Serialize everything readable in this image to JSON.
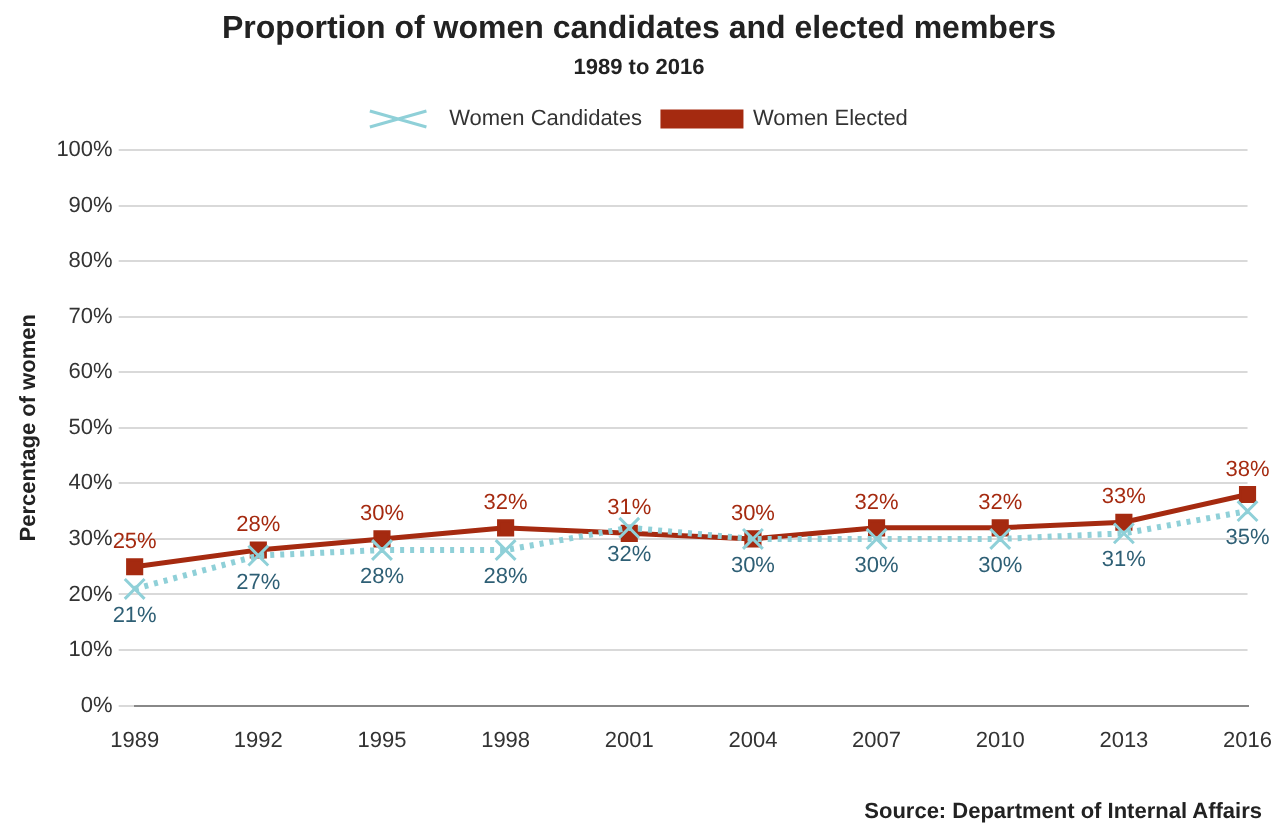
{
  "chart_data": {
    "type": "line",
    "title": "Proportion of women candidates and elected members",
    "subtitle": "1989  to 2016",
    "ylabel": "Percentage of women",
    "categories": [
      "1989",
      "1992",
      "1995",
      "1998",
      "2001",
      "2004",
      "2007",
      "2010",
      "2013",
      "2016"
    ],
    "series": [
      {
        "name": "Women Candidates",
        "color": "#8fd0d8",
        "marker": "cross",
        "line_style": "dotted",
        "values": [
          21,
          27,
          28,
          28,
          32,
          30,
          30,
          30,
          31,
          35
        ],
        "value_labels": [
          "21%",
          "27%",
          "28%",
          "28%",
          "32%",
          "30%",
          "30%",
          "30%",
          "31%",
          "35%"
        ]
      },
      {
        "name": "Women Elected",
        "color": "#a52a10",
        "marker": "square",
        "line_style": "solid",
        "values": [
          25,
          28,
          30,
          32,
          31,
          30,
          32,
          32,
          33,
          38
        ],
        "value_labels": [
          "25%",
          "28%",
          "30%",
          "32%",
          "31%",
          "30%",
          "32%",
          "32%",
          "33%",
          "38%"
        ]
      }
    ],
    "ylim": [
      0,
      100
    ],
    "yticks": [
      {
        "value": 0,
        "label": "0%"
      },
      {
        "value": 10,
        "label": "10%"
      },
      {
        "value": 20,
        "label": "20%"
      },
      {
        "value": 30,
        "label": "30%"
      },
      {
        "value": 40,
        "label": "40%"
      },
      {
        "value": 50,
        "label": "50%"
      },
      {
        "value": 60,
        "label": "60%"
      },
      {
        "value": 70,
        "label": "70%"
      },
      {
        "value": 80,
        "label": "80%"
      },
      {
        "value": 90,
        "label": "90%"
      },
      {
        "value": 100,
        "label": "100%"
      }
    ],
    "grid": "y",
    "legend": "top",
    "annotations": [
      "Source: Department of Internal Affairs"
    ]
  }
}
